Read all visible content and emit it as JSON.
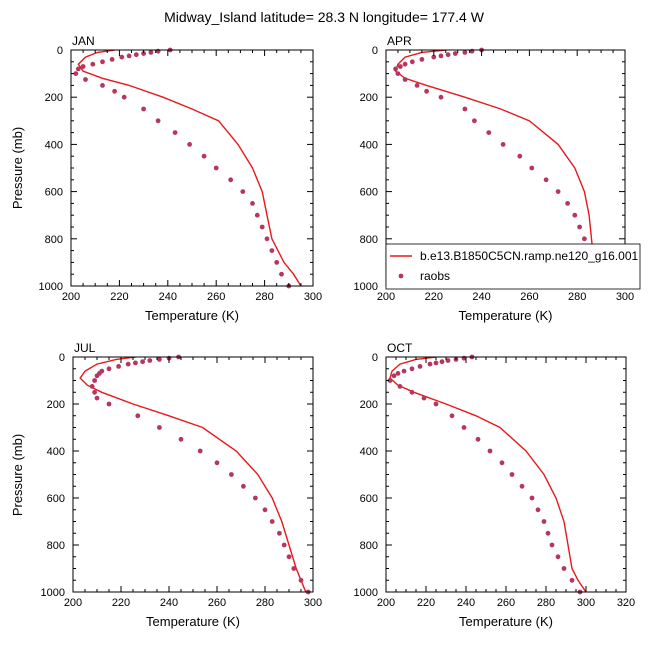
{
  "title": "Midway_Island  latitude= 28.3 N longitude= 177.4 W",
  "colors": {
    "model_line": "#e8191c",
    "raobs_marker": "#b5375f",
    "frame": "#000000"
  },
  "legend": {
    "model_label": "b.e13.B1850C5CN.ramp.ne120_g16.001",
    "obs_label": "raobs",
    "panel": "APR"
  },
  "chart_data": [
    {
      "type": "line",
      "panel": "JAN",
      "xlabel": "Temperature (K)",
      "ylabel": "Pressure (mb)",
      "xlim": [
        200,
        300
      ],
      "ylim": [
        1000,
        0
      ],
      "y_reversed": true,
      "xticks": [
        200,
        220,
        240,
        260,
        280,
        300
      ],
      "yticks": [
        0,
        200,
        400,
        600,
        800,
        1000
      ],
      "series": [
        {
          "name": "b.e13.B1850C5CN.ramp.ne120_g16.001",
          "style": "line",
          "x": [
            218,
            211,
            206,
            203,
            205,
            213,
            224,
            238,
            250,
            261,
            269,
            275,
            279,
            281,
            283,
            288,
            292,
            295
          ],
          "y": [
            0,
            10,
            30,
            60,
            90,
            120,
            150,
            200,
            250,
            300,
            400,
            500,
            600,
            700,
            800,
            900,
            950,
            1000
          ]
        },
        {
          "name": "raobs",
          "style": "markers",
          "x": [
            241,
            236,
            233,
            230,
            227,
            224,
            221,
            217,
            213,
            209,
            205,
            203,
            202,
            206,
            213,
            218,
            222,
            230,
            236,
            243,
            249,
            255,
            260,
            266,
            271,
            275,
            277,
            279,
            281,
            283,
            285,
            287,
            290
          ],
          "y": [
            0,
            5,
            10,
            15,
            20,
            25,
            30,
            40,
            50,
            60,
            70,
            80,
            100,
            125,
            150,
            175,
            200,
            250,
            300,
            350,
            400,
            450,
            500,
            550,
            600,
            650,
            700,
            750,
            800,
            850,
            900,
            950,
            1000
          ]
        }
      ]
    },
    {
      "type": "line",
      "panel": "APR",
      "xlabel": "Temperature (K)",
      "ylabel": "",
      "xlim": [
        200,
        300
      ],
      "ylim": [
        1000,
        0
      ],
      "y_reversed": true,
      "xticks": [
        200,
        220,
        240,
        260,
        280,
        300
      ],
      "yticks": [
        0,
        200,
        400,
        600,
        800,
        1000
      ],
      "series": [
        {
          "name": "b.e13.B1850C5CN.ramp.ne120_g16.001",
          "style": "line",
          "x": [
            225,
            215,
            208,
            205,
            204,
            208,
            217,
            233,
            248,
            260,
            272,
            279,
            283,
            285,
            286,
            287,
            289,
            293
          ],
          "y": [
            0,
            10,
            30,
            60,
            90,
            120,
            150,
            200,
            250,
            300,
            400,
            500,
            600,
            700,
            800,
            900,
            950,
            1000
          ]
        },
        {
          "name": "raobs",
          "style": "markers",
          "x": [
            240,
            236,
            233,
            229,
            226,
            223,
            220,
            215,
            211,
            208,
            206,
            204,
            205,
            208,
            213,
            217,
            223,
            233,
            237,
            243,
            249,
            256,
            261,
            267,
            272,
            276,
            279,
            281,
            283,
            285,
            287,
            289,
            291
          ],
          "y": [
            0,
            5,
            10,
            15,
            20,
            25,
            30,
            40,
            50,
            60,
            70,
            80,
            100,
            125,
            150,
            175,
            200,
            250,
            300,
            350,
            400,
            450,
            500,
            550,
            600,
            650,
            700,
            750,
            800,
            850,
            900,
            950,
            1000
          ]
        }
      ]
    },
    {
      "type": "line",
      "panel": "JUL",
      "xlabel": "Temperature (K)",
      "ylabel": "Pressure (mb)",
      "xlim": [
        200,
        300
      ],
      "ylim": [
        1000,
        0
      ],
      "y_reversed": true,
      "xticks": [
        200,
        220,
        240,
        260,
        280,
        300
      ],
      "yticks": [
        0,
        200,
        400,
        600,
        800,
        1000
      ],
      "series": [
        {
          "name": "b.e13.B1850C5CN.ramp.ne120_g16.001",
          "style": "line",
          "x": [
            226,
            218,
            210,
            205,
            203,
            206,
            212,
            225,
            240,
            254,
            268,
            277,
            283,
            287,
            290,
            293,
            295,
            297
          ],
          "y": [
            0,
            10,
            30,
            60,
            90,
            120,
            150,
            200,
            250,
            300,
            400,
            500,
            600,
            700,
            800,
            900,
            950,
            1000
          ]
        },
        {
          "name": "raobs",
          "style": "markers",
          "x": [
            244,
            240,
            236,
            232,
            229,
            226,
            223,
            219,
            215,
            212,
            211,
            210,
            209,
            208,
            209,
            210,
            215,
            227,
            236,
            245,
            253,
            260,
            266,
            271,
            276,
            280,
            283,
            286,
            288,
            290,
            292,
            295,
            298
          ],
          "y": [
            0,
            5,
            10,
            15,
            20,
            25,
            30,
            40,
            50,
            60,
            70,
            80,
            100,
            125,
            150,
            175,
            200,
            250,
            300,
            350,
            400,
            450,
            500,
            550,
            600,
            650,
            700,
            750,
            800,
            850,
            900,
            950,
            1000
          ]
        }
      ]
    },
    {
      "type": "line",
      "panel": "OCT",
      "xlabel": "Temperature (K)",
      "ylabel": "",
      "xlim": [
        200,
        320
      ],
      "ylim": [
        1000,
        0
      ],
      "y_reversed": true,
      "xticks": [
        200,
        220,
        240,
        260,
        280,
        300,
        320
      ],
      "yticks": [
        0,
        200,
        400,
        600,
        800,
        1000
      ],
      "series": [
        {
          "name": "b.e13.B1850C5CN.ramp.ne120_g16.001",
          "style": "line",
          "x": [
            225,
            215,
            207,
            203,
            202,
            206,
            214,
            230,
            245,
            257,
            270,
            279,
            285,
            289,
            291,
            293,
            296,
            300
          ],
          "y": [
            0,
            10,
            30,
            60,
            90,
            120,
            150,
            200,
            250,
            300,
            400,
            500,
            600,
            700,
            800,
            900,
            950,
            1000
          ]
        },
        {
          "name": "raobs",
          "style": "markers",
          "x": [
            243,
            239,
            235,
            231,
            228,
            225,
            222,
            217,
            213,
            209,
            206,
            204,
            202,
            207,
            213,
            219,
            225,
            233,
            239,
            246,
            252,
            258,
            263,
            268,
            273,
            276,
            279,
            281,
            283,
            286,
            289,
            293,
            297
          ],
          "y": [
            0,
            5,
            10,
            15,
            20,
            25,
            30,
            40,
            50,
            60,
            70,
            80,
            100,
            125,
            150,
            175,
            200,
            250,
            300,
            350,
            400,
            450,
            500,
            550,
            600,
            650,
            700,
            750,
            800,
            850,
            900,
            950,
            1000
          ]
        }
      ]
    }
  ]
}
